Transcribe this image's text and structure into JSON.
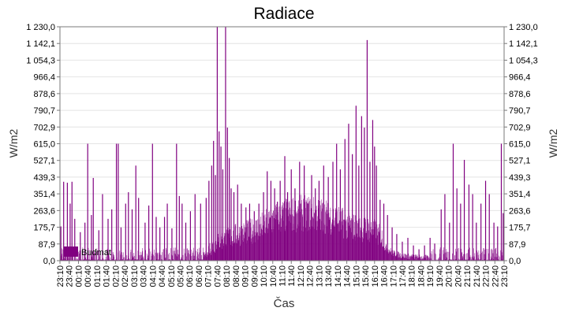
{
  "chart_data": {
    "type": "bar",
    "title": "Radiace",
    "xlabel": "Čas",
    "ylabel": "W/m2",
    "ylabel_right": "W/m2",
    "ylim": [
      0,
      1230.0
    ],
    "y_ticks": [
      "0,0",
      "87,9",
      "175,7",
      "263,6",
      "351,4",
      "439,3",
      "527,1",
      "615,0",
      "702,9",
      "790,7",
      "878,6",
      "966,4",
      "1 054,3",
      "1 142,1",
      "1 230,0"
    ],
    "x_ticks": [
      "23:10",
      "23:40",
      "00:10",
      "00:40",
      "01:10",
      "01:40",
      "02:10",
      "02:40",
      "03:10",
      "03:40",
      "04:10",
      "04:40",
      "05:10",
      "05:40",
      "06:10",
      "06:40",
      "07:10",
      "07:40",
      "08:10",
      "08:40",
      "09:10",
      "09:40",
      "10:10",
      "10:40",
      "11:10",
      "11:40",
      "12:10",
      "12:40",
      "13:10",
      "13:40",
      "14:10",
      "14:40",
      "15:10",
      "15:40",
      "16:10",
      "16:40",
      "17:10",
      "17:40",
      "18:10",
      "18:40",
      "19:10",
      "19:40",
      "20:10",
      "20:40",
      "21:10",
      "21:40",
      "22:10",
      "22:40",
      "23:10"
    ],
    "grid": true,
    "legend": {
      "position": "bottom-left",
      "entries": [
        {
          "name": "Budmat",
          "color": "#800080"
        }
      ]
    },
    "series": [
      {
        "name": "Budmat",
        "color": "#800080",
        "profile": [
          [
            0,
            0
          ],
          [
            14,
            0
          ],
          [
            15,
            5
          ],
          [
            16,
            20
          ],
          [
            17,
            45
          ],
          [
            18,
            60
          ],
          [
            19,
            72
          ],
          [
            20,
            80
          ],
          [
            21,
            90
          ],
          [
            22,
            108
          ],
          [
            23,
            125
          ],
          [
            24,
            140
          ],
          [
            25,
            145
          ],
          [
            26,
            152
          ],
          [
            27,
            150
          ],
          [
            28,
            145
          ],
          [
            29,
            140
          ],
          [
            30,
            125
          ],
          [
            31,
            110
          ],
          [
            32,
            100
          ],
          [
            33,
            95
          ],
          [
            34,
            85
          ],
          [
            35,
            55
          ],
          [
            36,
            22
          ],
          [
            37,
            10
          ],
          [
            38,
            5
          ],
          [
            39,
            2
          ],
          [
            40,
            0
          ],
          [
            48,
            0
          ]
        ],
        "spikes": [
          [
            0.1,
            180
          ],
          [
            0.4,
            415
          ],
          [
            0.8,
            410
          ],
          [
            1.1,
            300
          ],
          [
            1.3,
            415
          ],
          [
            1.6,
            220
          ],
          [
            2.2,
            150
          ],
          [
            2.7,
            200
          ],
          [
            3.0,
            615
          ],
          [
            3.4,
            240
          ],
          [
            3.6,
            435
          ],
          [
            4.2,
            160
          ],
          [
            4.6,
            350
          ],
          [
            5.2,
            220
          ],
          [
            5.6,
            270
          ],
          [
            6.1,
            615
          ],
          [
            6.3,
            615
          ],
          [
            6.6,
            175
          ],
          [
            7.1,
            300
          ],
          [
            7.4,
            360
          ],
          [
            7.8,
            270
          ],
          [
            8.2,
            500
          ],
          [
            8.5,
            330
          ],
          [
            9.2,
            200
          ],
          [
            9.6,
            290
          ],
          [
            10.0,
            615
          ],
          [
            10.4,
            230
          ],
          [
            10.8,
            175
          ],
          [
            11.3,
            230
          ],
          [
            11.6,
            300
          ],
          [
            12.1,
            170
          ],
          [
            12.6,
            615
          ],
          [
            12.9,
            340
          ],
          [
            13.2,
            300
          ],
          [
            13.6,
            200
          ],
          [
            14.1,
            260
          ],
          [
            14.6,
            350
          ],
          [
            15.2,
            300
          ],
          [
            15.8,
            330
          ],
          [
            16.1,
            420
          ],
          [
            16.4,
            500
          ],
          [
            16.6,
            630
          ],
          [
            16.8,
            450
          ],
          [
            17.0,
            1230
          ],
          [
            17.2,
            680
          ],
          [
            17.4,
            600
          ],
          [
            17.6,
            480
          ],
          [
            17.9,
            1230
          ],
          [
            18.1,
            700
          ],
          [
            18.3,
            540
          ],
          [
            18.5,
            380
          ],
          [
            18.8,
            360
          ],
          [
            19.2,
            400
          ],
          [
            19.6,
            300
          ],
          [
            20.1,
            280
          ],
          [
            20.5,
            300
          ],
          [
            21.0,
            260
          ],
          [
            21.5,
            300
          ],
          [
            22.0,
            360
          ],
          [
            22.4,
            470
          ],
          [
            22.8,
            420
          ],
          [
            23.2,
            380
          ],
          [
            23.5,
            310
          ],
          [
            23.8,
            420
          ],
          [
            24.3,
            550
          ],
          [
            24.6,
            360
          ],
          [
            25.0,
            480
          ],
          [
            25.4,
            380
          ],
          [
            25.9,
            520
          ],
          [
            26.4,
            500
          ],
          [
            26.8,
            300
          ],
          [
            27.2,
            450
          ],
          [
            27.6,
            380
          ],
          [
            28.0,
            420
          ],
          [
            28.5,
            500
          ],
          [
            29.0,
            440
          ],
          [
            29.5,
            520
          ],
          [
            29.9,
            615
          ],
          [
            30.3,
            480
          ],
          [
            30.8,
            640
          ],
          [
            31.2,
            720
          ],
          [
            31.6,
            560
          ],
          [
            32.0,
            815
          ],
          [
            32.3,
            500
          ],
          [
            32.6,
            760
          ],
          [
            32.9,
            700
          ],
          [
            33.2,
            1160
          ],
          [
            33.5,
            520
          ],
          [
            33.8,
            740
          ],
          [
            34.0,
            600
          ],
          [
            34.2,
            500
          ],
          [
            34.6,
            320
          ],
          [
            35.0,
            300
          ],
          [
            35.4,
            240
          ],
          [
            35.9,
            175
          ],
          [
            36.4,
            140
          ],
          [
            37.0,
            100
          ],
          [
            37.6,
            120
          ],
          [
            38.2,
            80
          ],
          [
            38.8,
            60
          ],
          [
            39.4,
            80
          ],
          [
            40.0,
            120
          ],
          [
            40.5,
            90
          ],
          [
            41.2,
            270
          ],
          [
            41.6,
            350
          ],
          [
            42.1,
            200
          ],
          [
            42.5,
            615
          ],
          [
            42.9,
            380
          ],
          [
            43.3,
            300
          ],
          [
            43.7,
            530
          ],
          [
            44.2,
            400
          ],
          [
            44.6,
            350
          ],
          [
            45.0,
            200
          ],
          [
            45.5,
            300
          ],
          [
            46.0,
            420
          ],
          [
            46.4,
            350
          ],
          [
            46.9,
            200
          ],
          [
            47.3,
            180
          ],
          [
            47.7,
            615
          ],
          [
            47.9,
            250
          ]
        ]
      }
    ]
  }
}
